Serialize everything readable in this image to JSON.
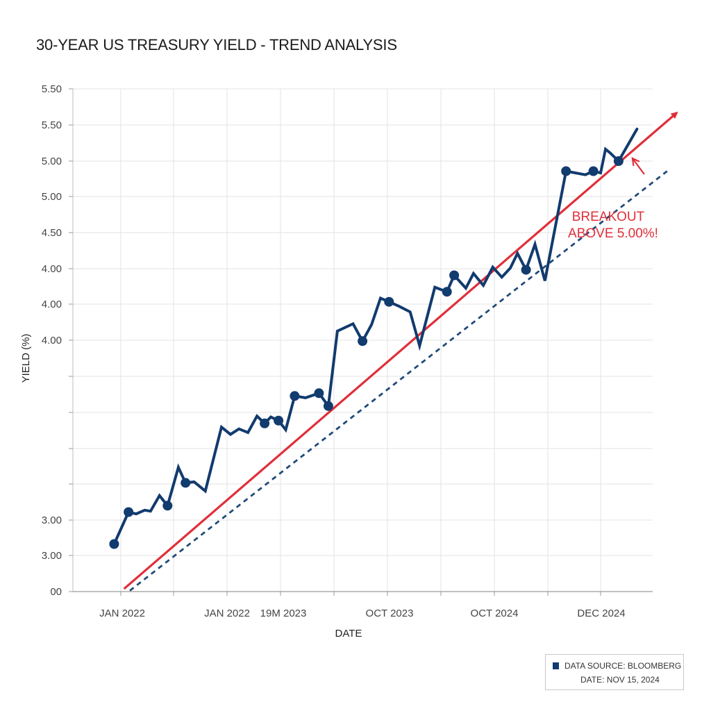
{
  "title": "30-YEAR US TREASURY YIELD - TREND ANALYSIS",
  "chart_data": {
    "type": "line",
    "title": "30-YEAR US TREASURY YIELD - TREND ANALYSIS",
    "xlabel": "DATE",
    "ylabel": "YIELD (%)",
    "x_tick_labels": [
      "JAN 2022",
      "JAN 2022",
      "19M 2023",
      "OCT 2023",
      "OCT 2024",
      "DEC 2024"
    ],
    "y_tick_labels": [
      "5.50",
      "5.50",
      "5.00",
      "5.00",
      "4.50",
      "4.00",
      "4.00",
      "4.00",
      "",
      "",
      "",
      "",
      "3.00",
      "3.00",
      "00"
    ],
    "y_scale_note": "approximate values, y axis tick labels are irregular",
    "ylim": [
      0,
      5.5
    ],
    "grid": true,
    "series": [
      {
        "name": "",
        "color": "#123b6e",
        "x": [
          "2021-12-14",
          "2022-01-15",
          "2022-02-01",
          "2022-02-20",
          "2022-03-05",
          "2022-03-25",
          "2022-04-12",
          "2022-05-06",
          "2022-05-22",
          "2022-06-10",
          "2022-07-05",
          "2022-08-10",
          "2022-08-30",
          "2022-09-18",
          "2022-10-08",
          "2022-10-28",
          "2022-11-14",
          "2022-11-28",
          "2022-12-15",
          "2022-12-31",
          "2023-01-20",
          "2023-02-13",
          "2023-03-15",
          "2023-04-05",
          "2023-04-25",
          "2023-05-30",
          "2023-06-20",
          "2023-07-10",
          "2023-07-30",
          "2023-08-18",
          "2023-09-10",
          "2023-10-04",
          "2023-10-25",
          "2023-11-28",
          "2023-12-25",
          "2024-01-10",
          "2024-02-05",
          "2024-02-22",
          "2024-03-15",
          "2024-04-05",
          "2024-04-25",
          "2024-05-14",
          "2024-05-30",
          "2024-06-18",
          "2024-07-08",
          "2024-07-30",
          "2024-09-15",
          "2024-10-28",
          "2024-11-15",
          "2024-12-01",
          "2024-12-12",
          "2024-12-22",
          "2025-01-10",
          "2025-02-20"
        ],
        "y": [
          0.52,
          0.87,
          0.85,
          0.89,
          0.88,
          1.05,
          0.94,
          1.36,
          1.19,
          1.2,
          1.1,
          1.8,
          1.72,
          1.78,
          1.74,
          1.92,
          1.84,
          1.91,
          1.87,
          1.77,
          2.14,
          2.12,
          2.17,
          2.03,
          2.85,
          2.93,
          2.74,
          2.92,
          3.21,
          3.17,
          3.12,
          3.06,
          2.69,
          3.33,
          3.28,
          3.46,
          3.32,
          3.48,
          3.35,
          3.55,
          3.44,
          3.54,
          3.7,
          3.52,
          3.8,
          3.4,
          4.6,
          4.56,
          4.6,
          4.58,
          4.84,
          4.8,
          4.71,
          5.06
        ],
        "markers_at_index": [
          0,
          1,
          6,
          8,
          16,
          18,
          20,
          22,
          23,
          26,
          29,
          34,
          35,
          43,
          46,
          48,
          52
        ]
      }
    ],
    "trendlines": [
      {
        "name": "",
        "style": "solid",
        "color": "#e02f3a",
        "arrow": true,
        "from": {
          "x": "2022-01-05",
          "y": 0.03
        },
        "to": {
          "x": "2025-05-20",
          "y": 5.24
        }
      },
      {
        "name": "",
        "style": "dashed",
        "color": "#1f4a78",
        "arrow": false,
        "from": {
          "x": "2022-01-18",
          "y": 0.01
        },
        "to": {
          "x": "2025-04-28",
          "y": 4.6
        }
      }
    ],
    "annotation": {
      "text_lines": [
        "BREAKOUT",
        "ABOVE 5.00%!"
      ],
      "color": "#e02f3a",
      "points_to": {
        "x": "2025-02-10",
        "y": 4.74
      }
    }
  },
  "source_box": {
    "line1": "DATA SOURCE: BLOOMBERG",
    "line2": "DATE: NOV 15, 2024",
    "marker_color": "#123b6e"
  }
}
